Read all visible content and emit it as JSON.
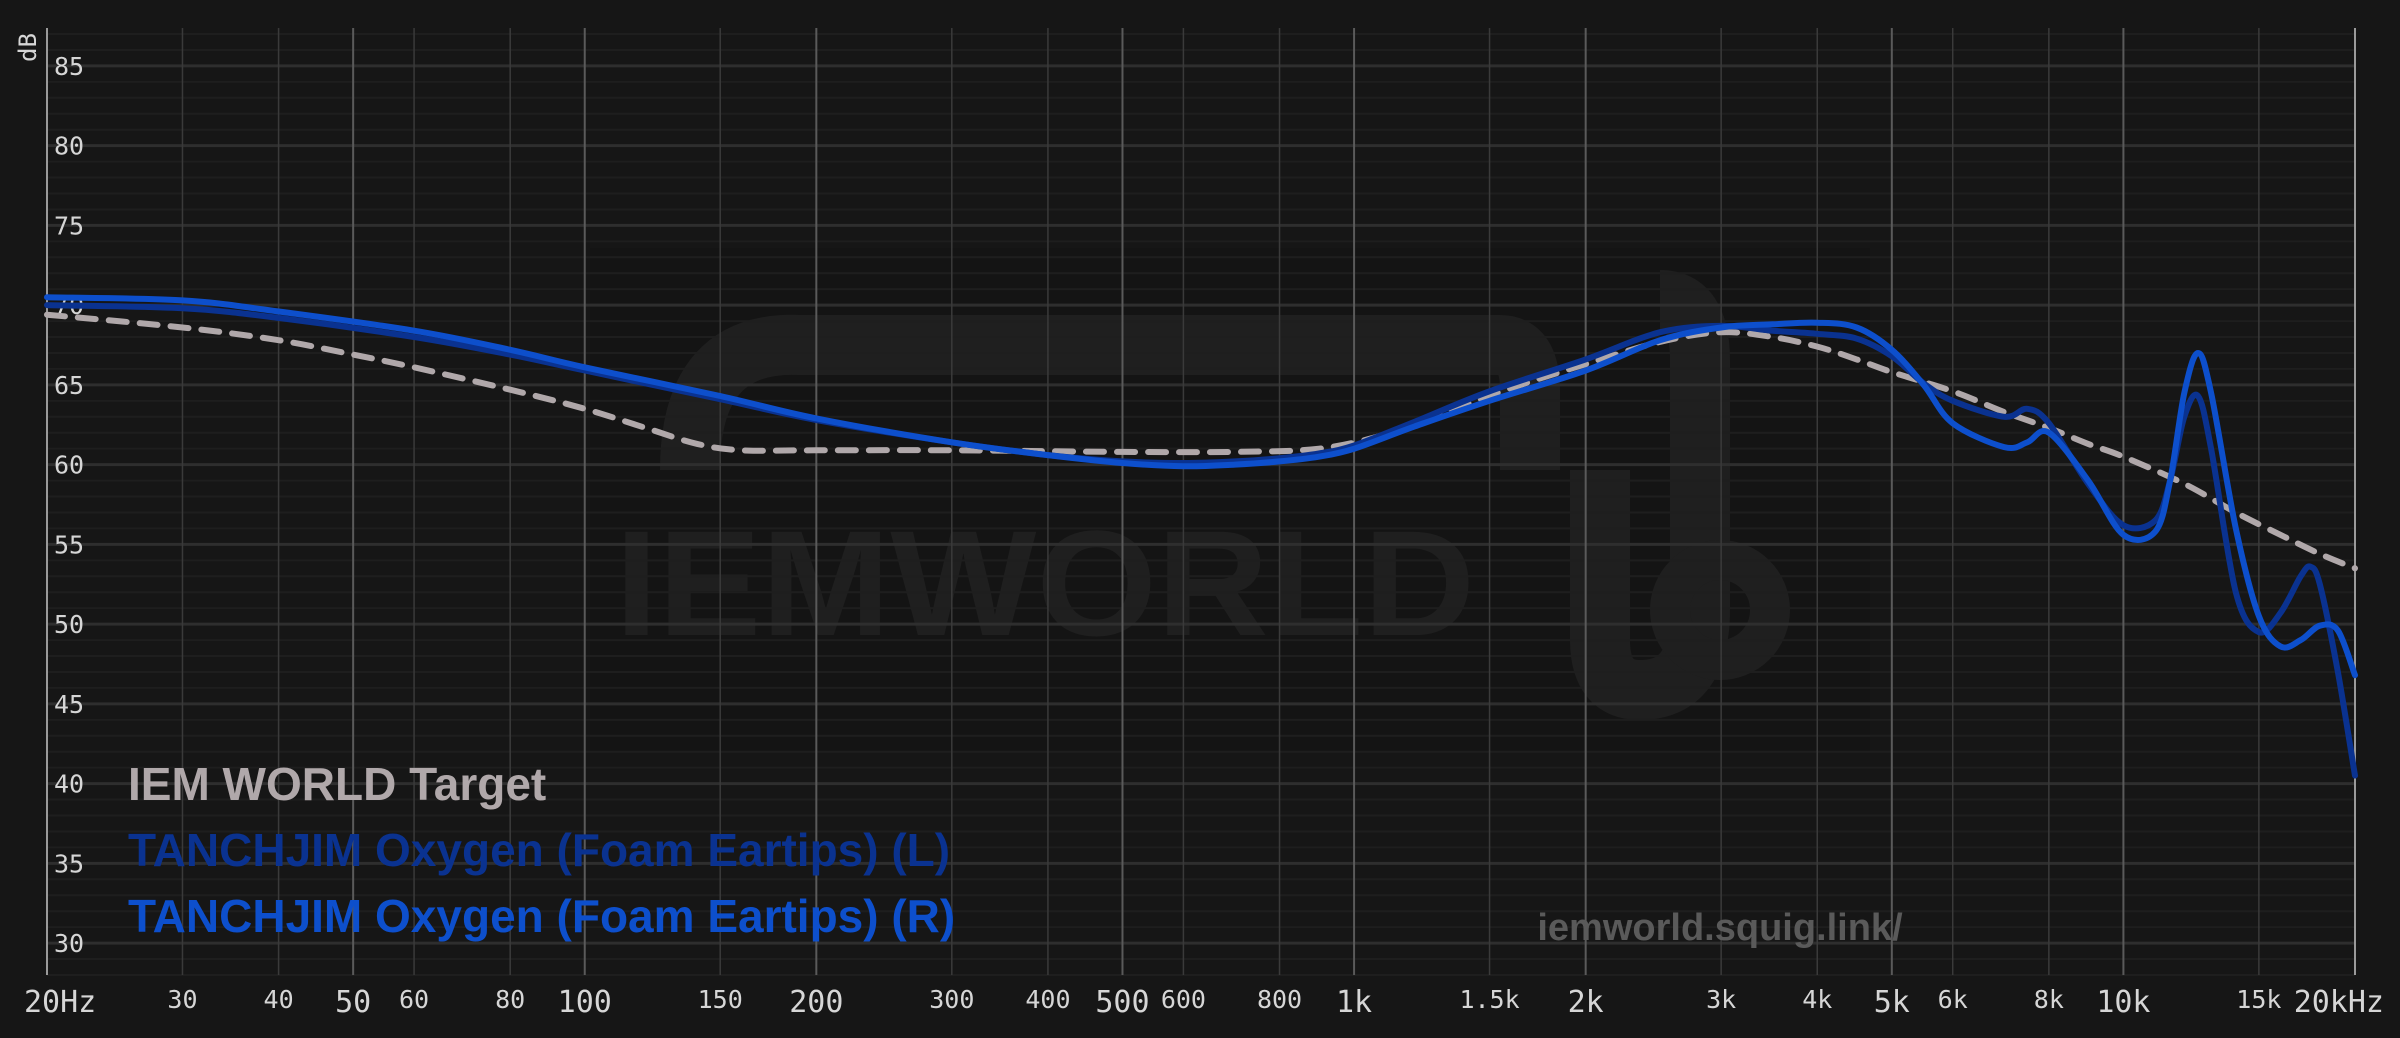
{
  "chart_data": {
    "type": "line",
    "ylabel": "dB",
    "ylim": [
      28,
      87
    ],
    "xlim": [
      20,
      20000
    ],
    "xscale": "log",
    "grid": true,
    "y_ticks": [
      "85",
      "80",
      "75",
      "70",
      "65",
      "60",
      "55",
      "50",
      "45",
      "40",
      "35",
      "30"
    ],
    "x_ticks": [
      {
        "f": 20,
        "label": "20Hz"
      },
      {
        "f": 30,
        "label": "30"
      },
      {
        "f": 40,
        "label": "40"
      },
      {
        "f": 50,
        "label": "50"
      },
      {
        "f": 60,
        "label": "60"
      },
      {
        "f": 80,
        "label": "80"
      },
      {
        "f": 100,
        "label": "100"
      },
      {
        "f": 150,
        "label": "150"
      },
      {
        "f": 200,
        "label": "200"
      },
      {
        "f": 300,
        "label": "300"
      },
      {
        "f": 400,
        "label": "400"
      },
      {
        "f": 500,
        "label": "500"
      },
      {
        "f": 600,
        "label": "600"
      },
      {
        "f": 800,
        "label": "800"
      },
      {
        "f": 1000,
        "label": "1k"
      },
      {
        "f": 1500,
        "label": "1.5k"
      },
      {
        "f": 2000,
        "label": "2k"
      },
      {
        "f": 3000,
        "label": "3k"
      },
      {
        "f": 4000,
        "label": "4k"
      },
      {
        "f": 5000,
        "label": "5k"
      },
      {
        "f": 6000,
        "label": "6k"
      },
      {
        "f": 8000,
        "label": "8k"
      },
      {
        "f": 10000,
        "label": "10k"
      },
      {
        "f": 15000,
        "label": "15k"
      },
      {
        "f": 20000,
        "label": "20kHz"
      }
    ],
    "series": [
      {
        "name": "IEM WORLD Target",
        "color": "#b0a8aa",
        "dashed": true,
        "points": [
          [
            20,
            69.4
          ],
          [
            30,
            68.6
          ],
          [
            40,
            67.8
          ],
          [
            50,
            66.9
          ],
          [
            60,
            66.1
          ],
          [
            80,
            64.7
          ],
          [
            100,
            63.5
          ],
          [
            120,
            62.3
          ],
          [
            140,
            61.3
          ],
          [
            160,
            60.9
          ],
          [
            200,
            60.9
          ],
          [
            300,
            60.9
          ],
          [
            500,
            60.8
          ],
          [
            700,
            60.8
          ],
          [
            900,
            61.0
          ],
          [
            1100,
            61.9
          ],
          [
            1300,
            63.2
          ],
          [
            1600,
            64.8
          ],
          [
            2000,
            66.3
          ],
          [
            2500,
            67.7
          ],
          [
            3000,
            68.3
          ],
          [
            3500,
            68.0
          ],
          [
            4000,
            67.4
          ],
          [
            4500,
            66.6
          ],
          [
            5000,
            65.8
          ],
          [
            6000,
            64.6
          ],
          [
            7000,
            63.3
          ],
          [
            8000,
            62.3
          ],
          [
            9000,
            61.3
          ],
          [
            10000,
            60.5
          ],
          [
            12000,
            58.8
          ],
          [
            14000,
            57.0
          ],
          [
            16000,
            55.6
          ],
          [
            18000,
            54.4
          ],
          [
            20000,
            53.5
          ]
        ]
      },
      {
        "name": "TANCHJIM Oxygen (Foam Eartips) (L)",
        "color": "#0a3290",
        "dashed": false,
        "points": [
          [
            20,
            70.0
          ],
          [
            30,
            69.8
          ],
          [
            40,
            69.2
          ],
          [
            60,
            68.0
          ],
          [
            80,
            66.9
          ],
          [
            100,
            65.9
          ],
          [
            150,
            64.1
          ],
          [
            200,
            62.8
          ],
          [
            300,
            61.4
          ],
          [
            400,
            60.6
          ],
          [
            500,
            60.2
          ],
          [
            600,
            60.1
          ],
          [
            700,
            60.2
          ],
          [
            800,
            60.4
          ],
          [
            900,
            60.7
          ],
          [
            1000,
            61.2
          ],
          [
            1200,
            62.7
          ],
          [
            1500,
            64.6
          ],
          [
            2000,
            66.6
          ],
          [
            2500,
            68.3
          ],
          [
            3000,
            68.7
          ],
          [
            3500,
            68.4
          ],
          [
            4000,
            68.2
          ],
          [
            4500,
            67.9
          ],
          [
            5000,
            66.8
          ],
          [
            5500,
            65.1
          ],
          [
            6000,
            64.0
          ],
          [
            7000,
            63.0
          ],
          [
            7500,
            63.5
          ],
          [
            8000,
            62.6
          ],
          [
            9000,
            58.8
          ],
          [
            10000,
            56.2
          ],
          [
            11000,
            56.5
          ],
          [
            11500,
            59.0
          ],
          [
            12000,
            63.0
          ],
          [
            12500,
            64.3
          ],
          [
            13000,
            61.0
          ],
          [
            14000,
            52.0
          ],
          [
            15000,
            49.5
          ],
          [
            16000,
            50.7
          ],
          [
            17000,
            53.0
          ],
          [
            17500,
            53.6
          ],
          [
            18000,
            52.5
          ],
          [
            19000,
            47.0
          ],
          [
            20000,
            40.5
          ]
        ]
      },
      {
        "name": "TANCHJIM Oxygen (Foam Eartips) (R)",
        "color": "#0d4fcc",
        "dashed": false,
        "points": [
          [
            20,
            70.5
          ],
          [
            30,
            70.3
          ],
          [
            40,
            69.6
          ],
          [
            60,
            68.4
          ],
          [
            80,
            67.2
          ],
          [
            100,
            66.1
          ],
          [
            150,
            64.3
          ],
          [
            200,
            62.9
          ],
          [
            300,
            61.4
          ],
          [
            400,
            60.6
          ],
          [
            500,
            60.1
          ],
          [
            600,
            59.9
          ],
          [
            700,
            60.0
          ],
          [
            800,
            60.2
          ],
          [
            900,
            60.5
          ],
          [
            1000,
            61.0
          ],
          [
            1200,
            62.4
          ],
          [
            1500,
            64.0
          ],
          [
            2000,
            65.9
          ],
          [
            2500,
            67.8
          ],
          [
            3000,
            68.6
          ],
          [
            3500,
            68.8
          ],
          [
            4000,
            68.9
          ],
          [
            4500,
            68.6
          ],
          [
            5000,
            67.2
          ],
          [
            5500,
            65.0
          ],
          [
            6000,
            62.6
          ],
          [
            7000,
            61.1
          ],
          [
            7500,
            61.4
          ],
          [
            8000,
            62.0
          ],
          [
            9000,
            59.0
          ],
          [
            10000,
            55.6
          ],
          [
            11000,
            55.8
          ],
          [
            11500,
            59.0
          ],
          [
            12000,
            64.5
          ],
          [
            12500,
            67.0
          ],
          [
            13000,
            64.5
          ],
          [
            14000,
            56.0
          ],
          [
            15000,
            50.5
          ],
          [
            16000,
            48.6
          ],
          [
            17000,
            49.0
          ],
          [
            18000,
            49.9
          ],
          [
            19000,
            49.6
          ],
          [
            20000,
            46.8
          ]
        ]
      }
    ],
    "legend_position": "bottom-left"
  },
  "watermark": {
    "brand": "IEMWORLD",
    "url": "iemworld.squig.link/"
  }
}
